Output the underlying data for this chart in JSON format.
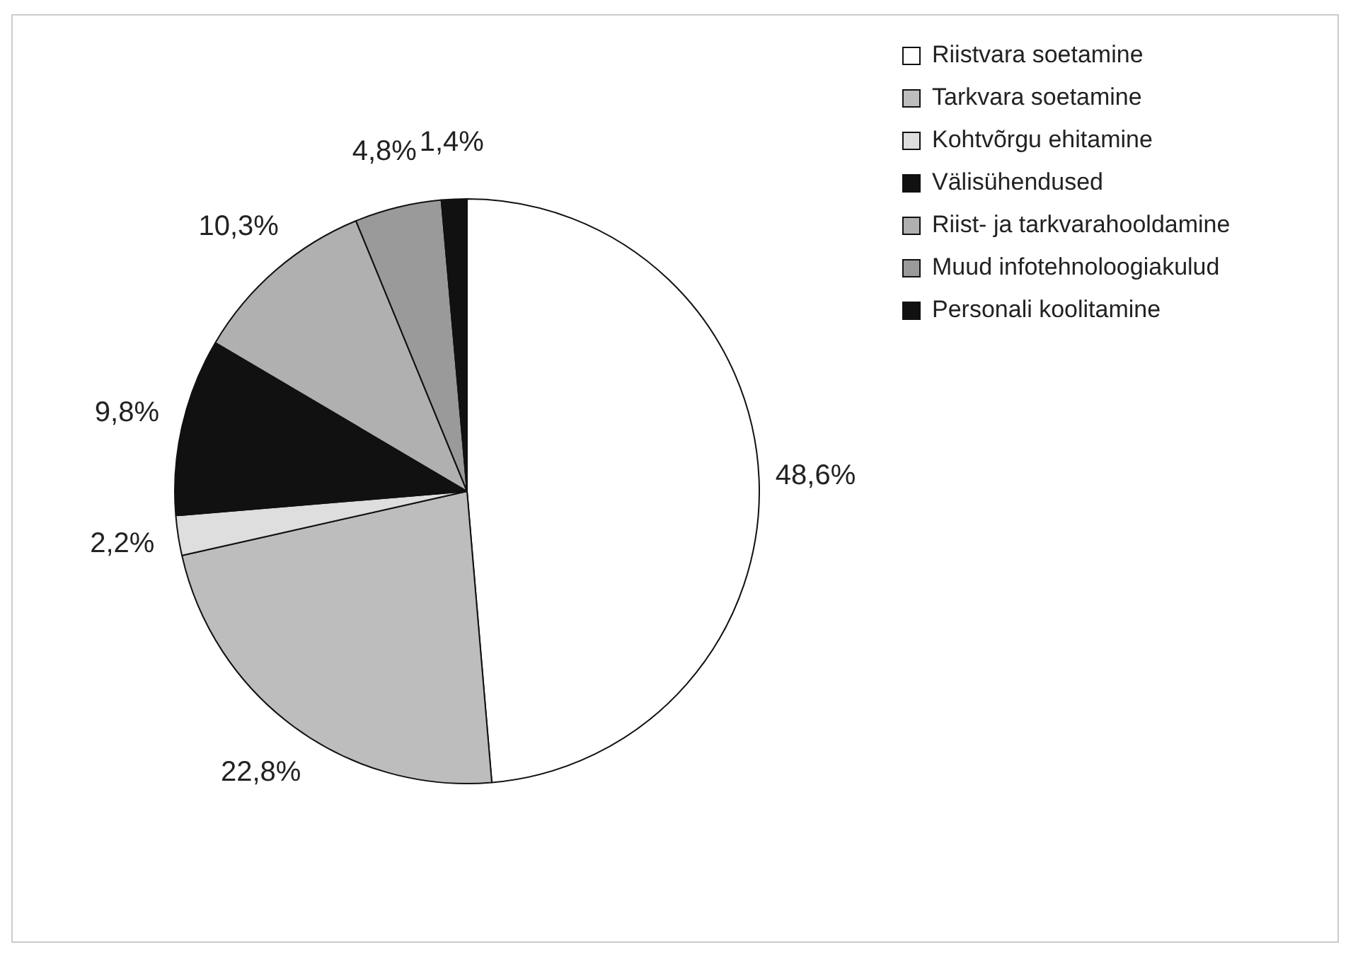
{
  "chart_data": {
    "type": "pie",
    "categories": [
      "Riistvara soetamine",
      "Tarkvara soetamine",
      "Kohtvõrgu ehitamine",
      "Välisühendused",
      "Riist- ja tarkvarahooldamine",
      "Muud infotehnoloogiakulud",
      "Personali koolitamine"
    ],
    "values": [
      48.6,
      22.8,
      2.2,
      9.8,
      10.3,
      4.8,
      1.4
    ],
    "colors": [
      "#ffffff",
      "#bdbdbd",
      "#dedede",
      "#111111",
      "#b0b0b0",
      "#9a9a9a",
      "#111111"
    ],
    "value_labels": [
      "48,6%",
      "22,8%",
      "2,2%",
      "9,8%",
      "10,3%",
      "4,8%",
      "1,4%"
    ],
    "legend": "top right"
  }
}
